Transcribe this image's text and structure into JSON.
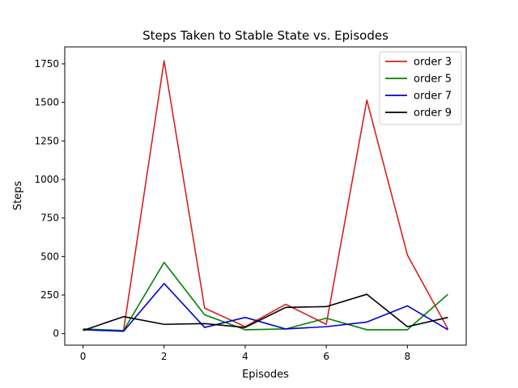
{
  "chart_data": {
    "type": "line",
    "title": "Steps Taken to Stable State vs. Episodes",
    "xlabel": "Episodes",
    "ylabel": "Steps",
    "x": [
      0,
      1,
      2,
      3,
      4,
      5,
      6,
      7,
      8,
      9
    ],
    "xlim": [
      -0.45,
      9.45
    ],
    "ylim": [
      -75,
      1860
    ],
    "xticks": [
      0,
      2,
      4,
      6,
      8
    ],
    "yticks": [
      0,
      250,
      500,
      750,
      1000,
      1250,
      1500,
      1750
    ],
    "grid": false,
    "legend_position": "top-right",
    "series": [
      {
        "name": "order 3",
        "color": "#d62020",
        "values": [
          25,
          20,
          1770,
          165,
          45,
          190,
          60,
          1515,
          510,
          30
        ]
      },
      {
        "name": "order 5",
        "color": "#008000",
        "values": [
          30,
          20,
          462,
          122,
          25,
          30,
          100,
          25,
          25,
          255
        ]
      },
      {
        "name": "order 7",
        "color": "#0000cc",
        "values": [
          25,
          15,
          325,
          40,
          105,
          30,
          45,
          75,
          180,
          25
        ]
      },
      {
        "name": "order 9",
        "color": "#000000",
        "values": [
          20,
          110,
          60,
          65,
          40,
          170,
          175,
          255,
          45,
          105
        ]
      }
    ]
  }
}
